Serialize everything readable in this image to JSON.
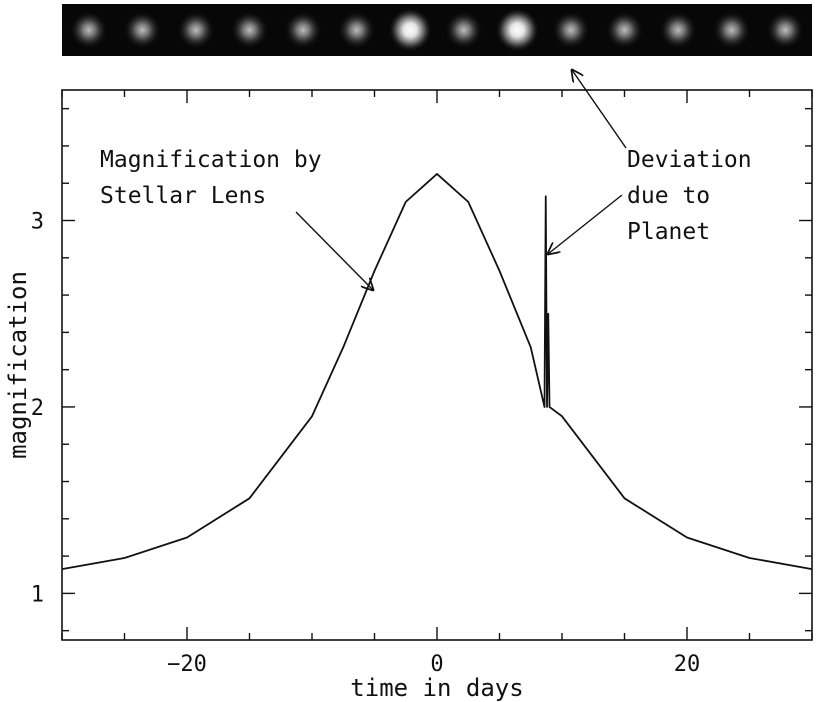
{
  "chart_data": {
    "type": "line",
    "xlabel": "time in days",
    "ylabel": "magnification",
    "xlim": [
      -30,
      30
    ],
    "ylim": [
      0.75,
      3.7
    ],
    "x_ticks": [
      -20,
      0,
      20
    ],
    "x_tick_labels": [
      "−20",
      "0",
      "20"
    ],
    "y_ticks": [
      1,
      2,
      3
    ],
    "y_tick_labels": [
      "1",
      "2",
      "3"
    ],
    "x_minor_step": 5,
    "y_minor_step": 0.2,
    "grid": false,
    "series": [
      {
        "x": [
          -30,
          -25,
          -20,
          -15,
          -10,
          -7.5,
          -5,
          -2.5,
          0,
          2.5,
          5,
          7.5,
          8.6,
          8.7,
          8.8,
          8.9,
          9.0,
          10,
          15,
          20,
          25,
          30
        ],
        "y": [
          1.13,
          1.19,
          1.3,
          1.51,
          1.95,
          2.32,
          2.73,
          3.1,
          3.25,
          3.1,
          2.73,
          2.32,
          2.0,
          3.13,
          2.0,
          2.5,
          2.0,
          1.95,
          1.51,
          1.3,
          1.19,
          1.13
        ]
      }
    ],
    "annotations": [
      {
        "lines": [
          "Magnification by",
          "Stellar Lens"
        ]
      },
      {
        "lines": [
          "Deviation",
          "due to",
          "Planet"
        ]
      }
    ],
    "image_strip": {
      "spot_count": 14,
      "bright_spots": [
        6,
        8
      ]
    }
  }
}
